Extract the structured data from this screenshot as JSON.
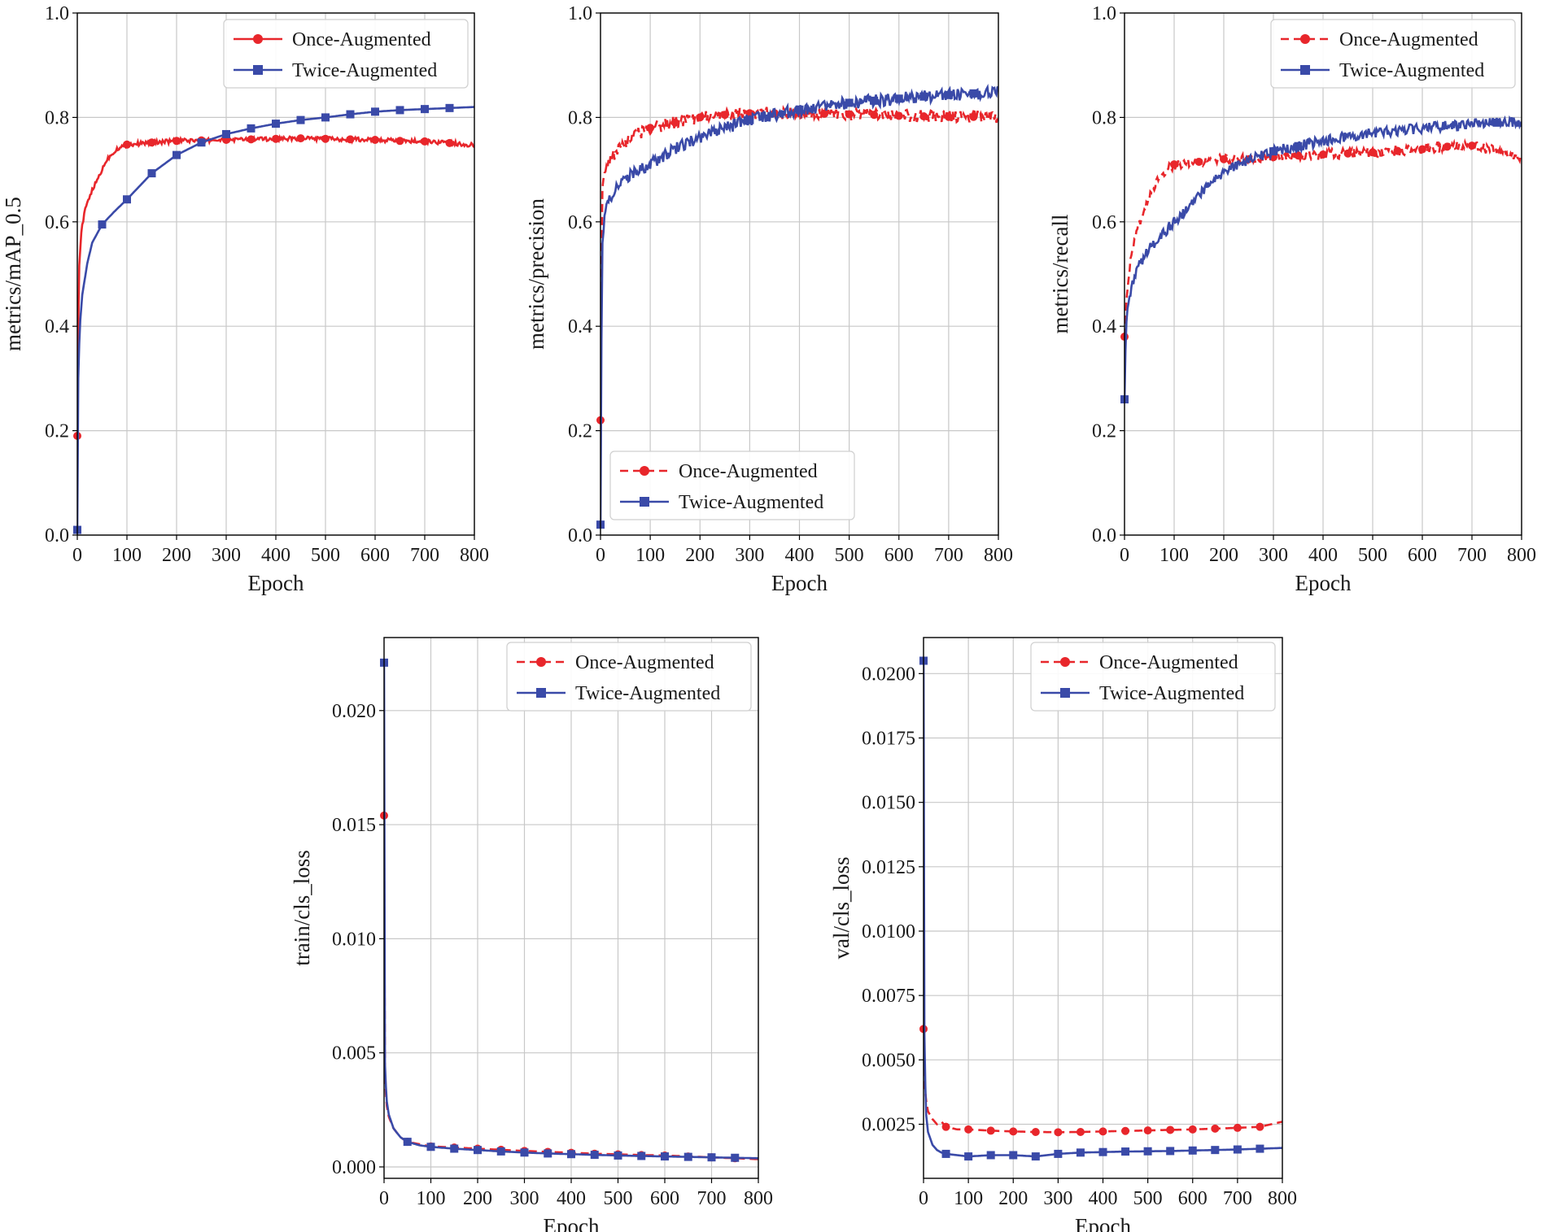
{
  "colors": {
    "once": "#e8262b",
    "twice": "#3a4aa8"
  },
  "chart_data": [
    {
      "type": "line",
      "id": "map",
      "title": "",
      "xlabel": "Epoch",
      "ylabel": "metrics/mAP_0.5",
      "xlim": [
        0,
        800
      ],
      "ylim": [
        0,
        1.0
      ],
      "xticks": [
        0,
        100,
        200,
        300,
        400,
        500,
        600,
        700,
        800
      ],
      "yticks": [
        0.0,
        0.2,
        0.4,
        0.6,
        0.8,
        1.0
      ],
      "ytick_labels": [
        "0.0",
        "0.2",
        "0.4",
        "0.6",
        "0.8",
        "1.0"
      ],
      "legend": "upper-right",
      "series": [
        {
          "name": "Once-Augmented",
          "style": "solid",
          "marker": "circle",
          "noise": 0.004,
          "x": [
            0,
            3,
            8,
            15,
            25,
            40,
            60,
            80,
            100,
            150,
            200,
            250,
            300,
            350,
            400,
            450,
            500,
            550,
            600,
            650,
            700,
            750,
            800
          ],
          "y": [
            0.19,
            0.5,
            0.58,
            0.62,
            0.65,
            0.68,
            0.72,
            0.74,
            0.748,
            0.752,
            0.755,
            0.756,
            0.757,
            0.758,
            0.759,
            0.76,
            0.759,
            0.758,
            0.757,
            0.755,
            0.754,
            0.751,
            0.747
          ],
          "marker_x": [
            0,
            100,
            150,
            200,
            250,
            300,
            350,
            400,
            450,
            500,
            550,
            600,
            650,
            700,
            750
          ]
        },
        {
          "name": "Twice-Augmented",
          "style": "solid",
          "marker": "square",
          "noise": 0.0,
          "x": [
            0,
            2,
            5,
            10,
            20,
            30,
            50,
            75,
            100,
            150,
            200,
            250,
            300,
            350,
            400,
            450,
            500,
            550,
            600,
            650,
            700,
            750,
            800
          ],
          "y": [
            0.01,
            0.3,
            0.4,
            0.46,
            0.52,
            0.56,
            0.595,
            0.62,
            0.643,
            0.693,
            0.728,
            0.752,
            0.768,
            0.779,
            0.788,
            0.795,
            0.8,
            0.806,
            0.811,
            0.814,
            0.816,
            0.818,
            0.82
          ],
          "marker_x": [
            0,
            50,
            100,
            150,
            200,
            250,
            300,
            350,
            400,
            450,
            500,
            550,
            600,
            650,
            700,
            750
          ]
        }
      ]
    },
    {
      "type": "line",
      "id": "precision",
      "title": "",
      "xlabel": "Epoch",
      "ylabel": "metrics/precision",
      "xlim": [
        0,
        800
      ],
      "ylim": [
        0,
        1.0
      ],
      "xticks": [
        0,
        100,
        200,
        300,
        400,
        500,
        600,
        700,
        800
      ],
      "yticks": [
        0.0,
        0.2,
        0.4,
        0.6,
        0.8,
        1.0
      ],
      "ytick_labels": [
        "0.0",
        "0.2",
        "0.4",
        "0.6",
        "0.8",
        "1.0"
      ],
      "legend": "lower-right",
      "series": [
        {
          "name": "Once-Augmented",
          "style": "dashed",
          "marker": "circle",
          "noise": 0.012,
          "x": [
            0,
            3,
            10,
            20,
            40,
            60,
            100,
            150,
            200,
            250,
            300,
            350,
            400,
            450,
            500,
            550,
            600,
            650,
            700,
            750,
            800
          ],
          "y": [
            0.22,
            0.66,
            0.7,
            0.72,
            0.74,
            0.76,
            0.78,
            0.79,
            0.8,
            0.805,
            0.808,
            0.808,
            0.808,
            0.807,
            0.806,
            0.805,
            0.803,
            0.802,
            0.801,
            0.801,
            0.8
          ],
          "marker_x": [
            0,
            100,
            150,
            200,
            250,
            300,
            350,
            400,
            450,
            500,
            550,
            600,
            650,
            700,
            750
          ]
        },
        {
          "name": "Twice-Augmented",
          "style": "solid",
          "marker": "square",
          "noise": 0.012,
          "x": [
            0,
            3,
            10,
            20,
            40,
            60,
            100,
            150,
            200,
            250,
            300,
            350,
            400,
            450,
            500,
            550,
            600,
            650,
            700,
            750,
            800
          ],
          "y": [
            0.02,
            0.55,
            0.62,
            0.65,
            0.67,
            0.69,
            0.71,
            0.74,
            0.76,
            0.78,
            0.795,
            0.805,
            0.815,
            0.822,
            0.828,
            0.832,
            0.836,
            0.84,
            0.843,
            0.846,
            0.848
          ],
          "marker_x": [
            0,
            300,
            400,
            500,
            550,
            600,
            650,
            700,
            750
          ]
        }
      ]
    },
    {
      "type": "line",
      "id": "recall",
      "title": "",
      "xlabel": "Epoch",
      "ylabel": "metrics/recall",
      "xlim": [
        0,
        800
      ],
      "ylim": [
        0,
        1.0
      ],
      "xticks": [
        0,
        100,
        200,
        300,
        400,
        500,
        600,
        700,
        800
      ],
      "yticks": [
        0.0,
        0.2,
        0.4,
        0.6,
        0.8,
        1.0
      ],
      "ytick_labels": [
        "0.0",
        "0.2",
        "0.4",
        "0.6",
        "0.8",
        "1.0"
      ],
      "legend": "upper-right",
      "series": [
        {
          "name": "Once-Augmented",
          "style": "dashed",
          "marker": "circle",
          "noise": 0.01,
          "x": [
            0,
            5,
            15,
            30,
            50,
            75,
            100,
            150,
            200,
            250,
            300,
            350,
            400,
            450,
            500,
            550,
            600,
            650,
            700,
            750,
            800
          ],
          "y": [
            0.38,
            0.47,
            0.55,
            0.6,
            0.65,
            0.69,
            0.71,
            0.715,
            0.72,
            0.72,
            0.724,
            0.727,
            0.729,
            0.731,
            0.733,
            0.736,
            0.739,
            0.744,
            0.746,
            0.735,
            0.725
          ],
          "marker_x": [
            0,
            100,
            150,
            200,
            250,
            300,
            350,
            400,
            450,
            500,
            550,
            600,
            650,
            700
          ]
        },
        {
          "name": "Twice-Augmented",
          "style": "solid",
          "marker": "square",
          "noise": 0.01,
          "x": [
            0,
            3,
            10,
            25,
            50,
            75,
            100,
            150,
            200,
            250,
            300,
            350,
            400,
            450,
            500,
            550,
            600,
            650,
            700,
            750,
            800
          ],
          "y": [
            0.26,
            0.4,
            0.46,
            0.51,
            0.55,
            0.575,
            0.6,
            0.65,
            0.695,
            0.72,
            0.735,
            0.745,
            0.755,
            0.763,
            0.77,
            0.775,
            0.78,
            0.784,
            0.787,
            0.79,
            0.792
          ],
          "marker_x": [
            0,
            300,
            350,
            750
          ]
        }
      ]
    },
    {
      "type": "line",
      "id": "train_cls",
      "title": "",
      "xlabel": "Epoch",
      "ylabel": "train/cls_loss",
      "xlim": [
        0,
        800
      ],
      "ylim": [
        -0.0005,
        0.0232
      ],
      "xticks": [
        0,
        100,
        200,
        300,
        400,
        500,
        600,
        700,
        800
      ],
      "yticks": [
        0.0,
        0.005,
        0.01,
        0.015,
        0.02
      ],
      "ytick_labels": [
        "0.000",
        "0.005",
        "0.010",
        "0.015",
        "0.020"
      ],
      "legend": "upper-right",
      "series": [
        {
          "name": "Once-Augmented",
          "style": "dashed",
          "marker": "circle",
          "noise": 0.0,
          "x": [
            0,
            2,
            5,
            10,
            20,
            35,
            50,
            75,
            100,
            150,
            200,
            250,
            300,
            350,
            400,
            450,
            500,
            550,
            600,
            650,
            700,
            750,
            800
          ],
          "y": [
            0.0154,
            0.004,
            0.0028,
            0.0022,
            0.0017,
            0.0013,
            0.0011,
            0.001,
            0.0009,
            0.00085,
            0.0008,
            0.00075,
            0.0007,
            0.00066,
            0.00062,
            0.00058,
            0.00055,
            0.00052,
            0.0005,
            0.00046,
            0.00042,
            0.00038,
            0.00034
          ],
          "marker_x": [
            0,
            50,
            100,
            150,
            200,
            250,
            300,
            350,
            400,
            450,
            500,
            550,
            600,
            650,
            700,
            750
          ]
        },
        {
          "name": "Twice-Augmented",
          "style": "solid",
          "marker": "square",
          "noise": 0.0,
          "x": [
            0,
            2,
            5,
            10,
            20,
            35,
            50,
            75,
            100,
            150,
            200,
            250,
            300,
            350,
            400,
            450,
            500,
            550,
            600,
            650,
            700,
            750,
            800
          ],
          "y": [
            0.0221,
            0.0045,
            0.003,
            0.0023,
            0.0017,
            0.0013,
            0.0011,
            0.00095,
            0.00088,
            0.0008,
            0.00074,
            0.00068,
            0.00063,
            0.00059,
            0.00056,
            0.00053,
            0.0005,
            0.00048,
            0.00046,
            0.00044,
            0.00042,
            0.0004,
            0.00038
          ],
          "marker_x": [
            0,
            50,
            100,
            150,
            200,
            250,
            300,
            350,
            400,
            450,
            500,
            550,
            600,
            650,
            700,
            750
          ]
        }
      ]
    },
    {
      "type": "line",
      "id": "val_cls",
      "title": "",
      "xlabel": "Epoch",
      "ylabel": "val/cls_loss",
      "xlim": [
        0,
        800
      ],
      "ylim": [
        0.0004,
        0.0214
      ],
      "xticks": [
        0,
        100,
        200,
        300,
        400,
        500,
        600,
        700,
        800
      ],
      "yticks": [
        0.0025,
        0.005,
        0.0075,
        0.01,
        0.0125,
        0.015,
        0.0175,
        0.02
      ],
      "ytick_labels": [
        "0.0025",
        "0.0050",
        "0.0075",
        "0.0100",
        "0.0125",
        "0.0150",
        "0.0175",
        "0.0200"
      ],
      "legend": "upper-right",
      "series": [
        {
          "name": "Once-Augmented",
          "style": "dashed",
          "marker": "circle",
          "noise": 0.0,
          "x": [
            0,
            2,
            5,
            10,
            20,
            30,
            40,
            50,
            75,
            100,
            150,
            200,
            250,
            300,
            350,
            400,
            450,
            500,
            550,
            600,
            650,
            700,
            750,
            800
          ],
          "y": [
            0.0062,
            0.0042,
            0.0035,
            0.003,
            0.0027,
            0.0025,
            0.0026,
            0.0024,
            0.0023,
            0.0023,
            0.00225,
            0.00222,
            0.0022,
            0.00219,
            0.0022,
            0.00222,
            0.00224,
            0.00226,
            0.00228,
            0.0023,
            0.00233,
            0.00236,
            0.0024,
            0.0026
          ],
          "marker_x": [
            0,
            50,
            100,
            150,
            200,
            250,
            300,
            350,
            400,
            450,
            500,
            550,
            600,
            650,
            700,
            750
          ]
        },
        {
          "name": "Twice-Augmented",
          "style": "solid",
          "marker": "square",
          "noise": 0.0,
          "x": [
            0,
            2,
            5,
            10,
            20,
            30,
            40,
            50,
            75,
            100,
            150,
            200,
            250,
            300,
            350,
            400,
            450,
            500,
            550,
            600,
            650,
            700,
            750,
            800
          ],
          "y": [
            0.0205,
            0.006,
            0.003,
            0.0022,
            0.0017,
            0.0015,
            0.0014,
            0.00135,
            0.0013,
            0.00125,
            0.0013,
            0.0013,
            0.00125,
            0.00135,
            0.0014,
            0.00142,
            0.00144,
            0.00145,
            0.00146,
            0.00148,
            0.0015,
            0.00152,
            0.00155,
            0.00158
          ],
          "marker_x": [
            0,
            50,
            100,
            150,
            200,
            250,
            300,
            350,
            400,
            450,
            500,
            550,
            600,
            650,
            700,
            750
          ]
        }
      ]
    }
  ]
}
